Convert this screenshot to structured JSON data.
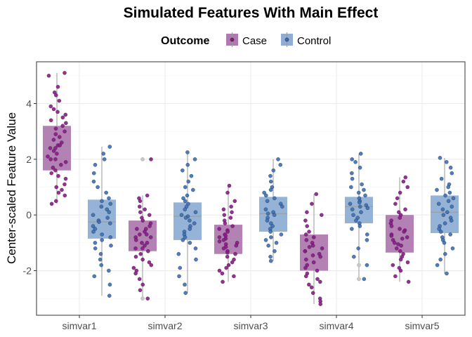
{
  "chart_data": {
    "type": "box",
    "title": "Simulated Features With Main Effect",
    "xlabel": "",
    "ylabel": "Center-scaled Feature Value",
    "legend": {
      "title": "Outcome",
      "position": "top"
    },
    "categories": [
      "simvar1",
      "simvar2",
      "simvar3",
      "simvar4",
      "simvar5"
    ],
    "y_ticks": [
      -2,
      0,
      2,
      4
    ],
    "ylim": [
      -3.6,
      5.5
    ],
    "grid": true,
    "series": [
      {
        "name": "Case",
        "color": "#8B1A89",
        "fill": "#B07AB0",
        "boxes": [
          {
            "min": 0.4,
            "q1": 1.6,
            "median": 2.4,
            "q3": 3.2,
            "max": 5.1,
            "outliers": []
          },
          {
            "min": -3.0,
            "q1": -1.3,
            "median": -0.75,
            "q3": -0.2,
            "max": 0.7,
            "outliers": [
              2.0,
              -3.0
            ]
          },
          {
            "min": -2.4,
            "q1": -1.4,
            "median": -0.9,
            "q3": -0.35,
            "max": 1.05,
            "outliers": []
          },
          {
            "min": -3.2,
            "q1": -2.0,
            "median": -1.3,
            "q3": -0.7,
            "max": 0.75,
            "outliers": []
          },
          {
            "min": -2.4,
            "q1": -1.35,
            "median": -0.8,
            "q3": 0.0,
            "max": 1.35,
            "outliers": []
          }
        ],
        "points": [
          [
            5.1,
            5.0,
            4.6,
            4.4,
            4.3,
            4.1,
            3.9,
            3.8,
            3.7,
            3.6,
            3.5,
            3.4,
            3.3,
            3.2,
            3.1,
            3.0,
            2.9,
            2.8,
            2.7,
            2.6,
            2.5,
            2.5,
            2.4,
            2.4,
            2.3,
            2.2,
            2.1,
            2.0,
            2.0,
            1.9,
            1.8,
            1.7,
            1.6,
            1.5,
            1.4,
            1.3,
            1.1,
            1.0,
            0.9,
            0.8,
            0.7,
            0.5,
            0.4
          ],
          [
            2.0,
            0.7,
            0.6,
            0.5,
            0.3,
            0.2,
            0.1,
            0.0,
            -0.1,
            -0.2,
            -0.3,
            -0.4,
            -0.5,
            -0.5,
            -0.6,
            -0.7,
            -0.7,
            -0.8,
            -0.8,
            -0.9,
            -1.0,
            -1.0,
            -1.1,
            -1.2,
            -1.2,
            -1.3,
            -1.4,
            -1.5,
            -1.6,
            -1.7,
            -1.8,
            -1.9,
            -2.0,
            -2.1,
            -2.3,
            -2.5,
            -2.7,
            -3.0
          ],
          [
            1.05,
            0.8,
            0.5,
            0.3,
            0.2,
            0.1,
            0.0,
            -0.1,
            -0.2,
            -0.3,
            -0.4,
            -0.5,
            -0.55,
            -0.6,
            -0.7,
            -0.75,
            -0.8,
            -0.85,
            -0.9,
            -0.95,
            -1.0,
            -1.05,
            -1.1,
            -1.15,
            -1.2,
            -1.3,
            -1.35,
            -1.4,
            -1.5,
            -1.6,
            -1.7,
            -1.8,
            -1.9,
            -2.0,
            -2.1,
            -2.2,
            -2.4
          ],
          [
            0.75,
            0.4,
            0.1,
            0.0,
            -0.2,
            -0.4,
            -0.6,
            -0.7,
            -0.8,
            -0.9,
            -1.0,
            -1.1,
            -1.15,
            -1.2,
            -1.3,
            -1.3,
            -1.4,
            -1.45,
            -1.5,
            -1.6,
            -1.7,
            -1.8,
            -1.9,
            -2.0,
            -2.1,
            -2.2,
            -2.3,
            -2.4,
            -2.5,
            -2.6,
            -2.8,
            -3.0,
            -3.1,
            -3.2
          ],
          [
            1.35,
            1.2,
            1.0,
            0.8,
            0.6,
            0.4,
            0.2,
            0.1,
            0.0,
            -0.1,
            -0.2,
            -0.3,
            -0.4,
            -0.5,
            -0.55,
            -0.6,
            -0.7,
            -0.75,
            -0.8,
            -0.85,
            -0.9,
            -1.0,
            -1.05,
            -1.1,
            -1.2,
            -1.3,
            -1.4,
            -1.5,
            -1.6,
            -1.7,
            -1.8,
            -1.9,
            -2.0,
            -2.2,
            -2.4
          ]
        ]
      },
      {
        "name": "Control",
        "color": "#3A6FB7",
        "fill": "#8FAED5",
        "boxes": [
          {
            "min": -2.9,
            "q1": -0.85,
            "median": -0.25,
            "q3": 0.55,
            "max": 2.45,
            "outliers": []
          },
          {
            "min": -2.8,
            "q1": -0.9,
            "median": -0.05,
            "q3": 0.45,
            "max": 2.25,
            "outliers": []
          },
          {
            "min": -1.65,
            "q1": -0.6,
            "median": 0.05,
            "q3": 0.65,
            "max": 2.0,
            "outliers": []
          },
          {
            "min": -2.3,
            "q1": -0.3,
            "median": 0.3,
            "q3": 0.65,
            "max": 2.2,
            "outliers": [
              -1.8,
              -2.3
            ]
          },
          {
            "min": -2.1,
            "q1": -0.65,
            "median": 0.1,
            "q3": 0.7,
            "max": 2.05,
            "outliers": []
          }
        ],
        "points": [
          [
            2.45,
            2.2,
            2.0,
            1.8,
            1.5,
            1.2,
            1.0,
            0.8,
            0.6,
            0.5,
            0.4,
            0.3,
            0.2,
            0.1,
            0.0,
            -0.1,
            -0.2,
            -0.25,
            -0.3,
            -0.4,
            -0.5,
            -0.6,
            -0.7,
            -0.8,
            -0.9,
            -1.0,
            -1.1,
            -1.2,
            -1.4,
            -1.6,
            -1.8,
            -2.0,
            -2.2,
            -2.5,
            -2.9
          ],
          [
            2.25,
            2.0,
            1.8,
            1.6,
            1.4,
            1.2,
            1.0,
            0.9,
            0.7,
            0.6,
            0.5,
            0.4,
            0.3,
            0.2,
            0.1,
            0.0,
            -0.05,
            -0.1,
            -0.2,
            -0.3,
            -0.4,
            -0.5,
            -0.6,
            -0.7,
            -0.8,
            -0.9,
            -1.0,
            -1.2,
            -1.4,
            -1.6,
            -1.9,
            -2.2,
            -2.5,
            -2.8
          ],
          [
            2.0,
            1.8,
            1.6,
            1.4,
            1.2,
            1.0,
            0.9,
            0.8,
            0.7,
            0.6,
            0.5,
            0.4,
            0.3,
            0.2,
            0.1,
            0.05,
            0.0,
            -0.1,
            -0.2,
            -0.3,
            -0.4,
            -0.5,
            -0.6,
            -0.7,
            -0.8,
            -0.9,
            -1.0,
            -1.1,
            -1.3,
            -1.5,
            -1.65
          ],
          [
            2.2,
            2.0,
            1.9,
            1.7,
            1.5,
            1.3,
            1.1,
            1.0,
            0.9,
            0.8,
            0.7,
            0.6,
            0.5,
            0.45,
            0.4,
            0.35,
            0.3,
            0.25,
            0.2,
            0.1,
            0.0,
            -0.1,
            -0.2,
            -0.3,
            -0.4,
            -0.5,
            -0.7,
            -0.9,
            -1.2,
            -1.5,
            -1.8,
            -2.3
          ],
          [
            2.05,
            1.9,
            1.7,
            1.5,
            1.3,
            1.1,
            1.0,
            0.9,
            0.8,
            0.7,
            0.6,
            0.5,
            0.4,
            0.3,
            0.2,
            0.1,
            0.0,
            -0.1,
            -0.2,
            -0.3,
            -0.4,
            -0.5,
            -0.6,
            -0.7,
            -0.8,
            -0.9,
            -1.0,
            -1.2,
            -1.4,
            -1.6,
            -1.8,
            -2.1
          ]
        ]
      }
    ]
  }
}
